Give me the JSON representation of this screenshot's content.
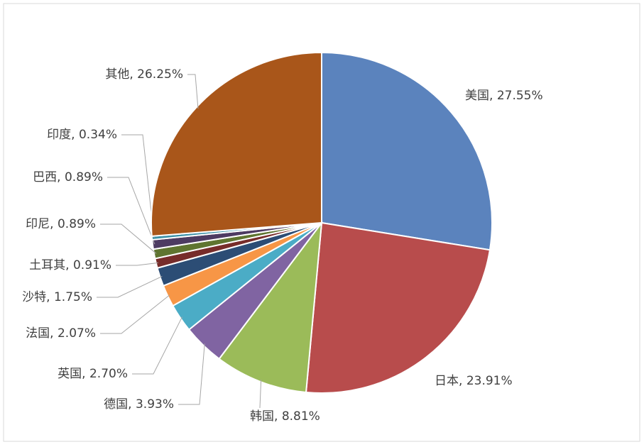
{
  "chart_data": {
    "type": "pie",
    "categories": [
      "美国",
      "日本",
      "韩国",
      "德国",
      "英国",
      "法国",
      "沙特",
      "土耳其",
      "印尼",
      "巴西",
      "印度",
      "其他"
    ],
    "values": [
      27.55,
      23.91,
      8.81,
      3.93,
      2.7,
      2.07,
      1.75,
      0.91,
      0.89,
      0.89,
      0.34,
      26.25
    ],
    "value_labels": [
      "27.55%",
      "23.91%",
      "8.81%",
      "3.93%",
      "2.70%",
      "2.07%",
      "1.75%",
      "0.91%",
      "0.89%",
      "0.89%",
      "0.34%",
      "26.25%"
    ],
    "label_separator": ", ",
    "colors": [
      "#5b83bd",
      "#b84c4c",
      "#9bbb59",
      "#8064a2",
      "#4bacc6",
      "#f79646",
      "#2c4d75",
      "#772c2a",
      "#5f7530",
      "#4d3b62",
      "#3a8fa6",
      "#a9561a"
    ]
  }
}
